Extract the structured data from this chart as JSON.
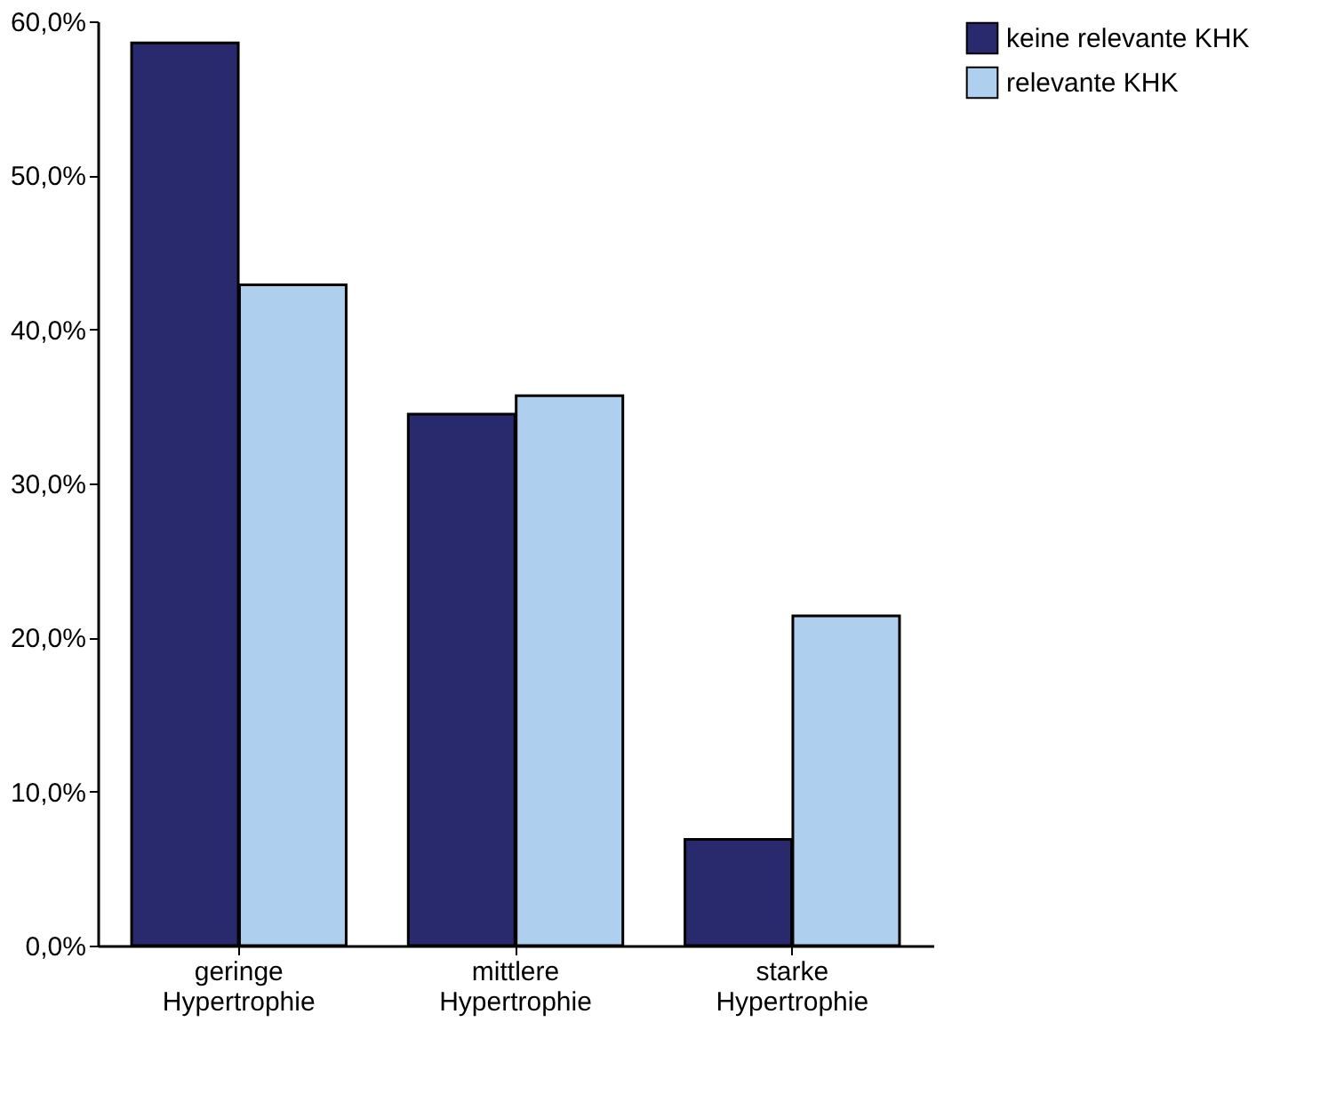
{
  "chart_data": {
    "type": "bar",
    "categories": [
      "geringe Hypertrophie",
      "mittlere Hypertrophie",
      "starke Hypertrophie"
    ],
    "series": [
      {
        "name": "keine relevante KHK",
        "color": "#29296e",
        "values": [
          58.6,
          34.5,
          6.9
        ]
      },
      {
        "name": "relevante KHK",
        "color": "#aed0ee",
        "values": [
          42.9,
          35.7,
          21.4
        ]
      }
    ],
    "ylim": [
      0,
      60
    ],
    "yticks": [
      {
        "value": 0,
        "label": "0,0%"
      },
      {
        "value": 10,
        "label": "10,0%"
      },
      {
        "value": 20,
        "label": "20,0%"
      },
      {
        "value": 30,
        "label": "30,0%"
      },
      {
        "value": 40,
        "label": "40,0%"
      },
      {
        "value": 50,
        "label": "50,0%"
      },
      {
        "value": 60,
        "label": "60,0%"
      }
    ],
    "grid": false,
    "legend": "top right"
  }
}
